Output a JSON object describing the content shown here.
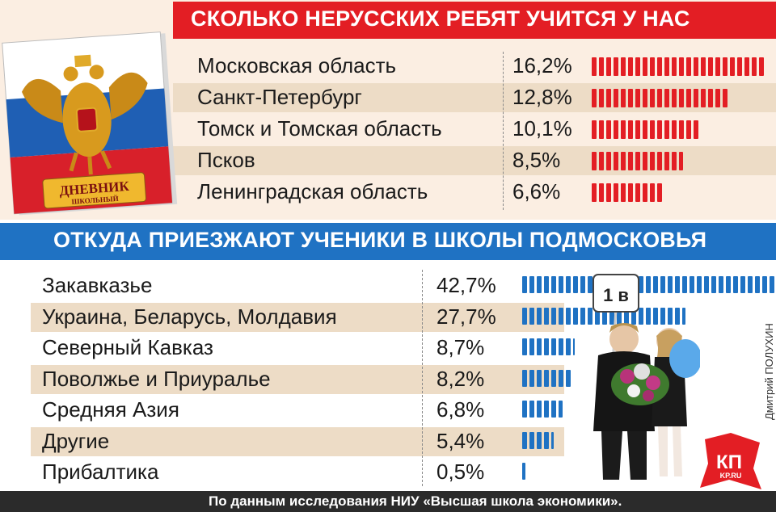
{
  "diary": {
    "title": "ДНЕВНИК",
    "subtitle": "ШКОЛЬНЫЙ"
  },
  "sign": {
    "label": "1 в"
  },
  "logo": {
    "text": "КП",
    "sub": "KP.RU"
  },
  "credit": "Дмитрий ПОЛУХИН",
  "footer": "По данным исследования НИУ «Высшая школа экономики».",
  "colors": {
    "red": "#e31e24",
    "blue": "#1f72c3",
    "beige": "#fbeee2",
    "stripe": "#eddcc6"
  },
  "chart_data": [
    {
      "type": "bar",
      "title": "СКОЛЬКО НЕРУССКИХ РЕБЯТ УЧИТСЯ У НАС",
      "unit": "%",
      "categories": [
        "Московская область",
        "Санкт-Петербург",
        "Томск и Томская область",
        "Псков",
        "Ленинградская область"
      ],
      "labels": [
        "16,2%",
        "12,8%",
        "10,1%",
        "8,5%",
        "6,6%"
      ],
      "values": [
        16.2,
        12.8,
        10.1,
        8.5,
        6.6
      ]
    },
    {
      "type": "bar",
      "title": "ОТКУДА ПРИЕЗЖАЮТ УЧЕНИКИ В ШКОЛЫ ПОДМОСКОВЬЯ",
      "unit": "%",
      "categories": [
        "Закавказье",
        "Украина, Беларусь, Молдавия",
        "Северный Кавказ",
        "Поволжье и Приуралье",
        "Средняя Азия",
        "Другие",
        "Прибалтика"
      ],
      "labels": [
        "42,7%",
        "27,7%",
        "8,7%",
        "8,2%",
        "6,8%",
        "5,4%",
        "0,5%"
      ],
      "values": [
        42.7,
        27.7,
        8.7,
        8.2,
        6.8,
        5.4,
        0.5
      ]
    }
  ]
}
